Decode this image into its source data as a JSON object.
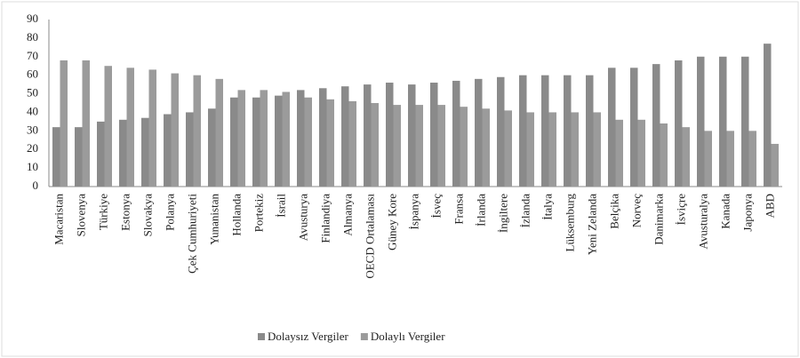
{
  "chart_data": {
    "type": "bar",
    "categories": [
      "Macaristan",
      "Slovenya",
      "Türkiye",
      "Estonya",
      "Slovakya",
      "Polanya",
      "Çek Cumhuriyeti",
      "Yunanistan",
      "Hollanda",
      "Portekiz",
      "İsrail",
      "Avusturya",
      "Finlandiya",
      "Almanya",
      "OECD Ortalaması",
      "Güney Kore",
      "İspanya",
      "İsveç",
      "Fransa",
      "İrlanda",
      "İngiltere",
      "İzlanda",
      "İtalya",
      "Lüksemburg",
      "Yeni Zelanda",
      "Belçika",
      "Norveç",
      "Danimarka",
      "İsviçre",
      "Avusturalya",
      "Kanada",
      "Japonya",
      "ABD"
    ],
    "series": [
      {
        "name": "Dolaysız Vergiler",
        "color": "#8a8a8a",
        "values": [
          32,
          32,
          35,
          36,
          37,
          39,
          40,
          42,
          48,
          48,
          49,
          52,
          53,
          54,
          55,
          56,
          55,
          56,
          57,
          58,
          59,
          60,
          60,
          60,
          60,
          64,
          64,
          66,
          68,
          70,
          70,
          70,
          77
        ]
      },
      {
        "name": "Dolaylı Vergiler",
        "color": "#9b9b9b",
        "values": [
          68,
          68,
          65,
          64,
          63,
          61,
          60,
          58,
          52,
          52,
          51,
          48,
          47,
          46,
          45,
          44,
          44,
          44,
          43,
          42,
          41,
          40,
          40,
          40,
          40,
          36,
          36,
          34,
          32,
          30,
          30,
          30,
          23
        ]
      }
    ],
    "ylim": [
      0,
      90
    ],
    "yticks": [
      0,
      10,
      20,
      30,
      40,
      50,
      60,
      70,
      80,
      90
    ],
    "grid": false,
    "legend": "bottom"
  }
}
